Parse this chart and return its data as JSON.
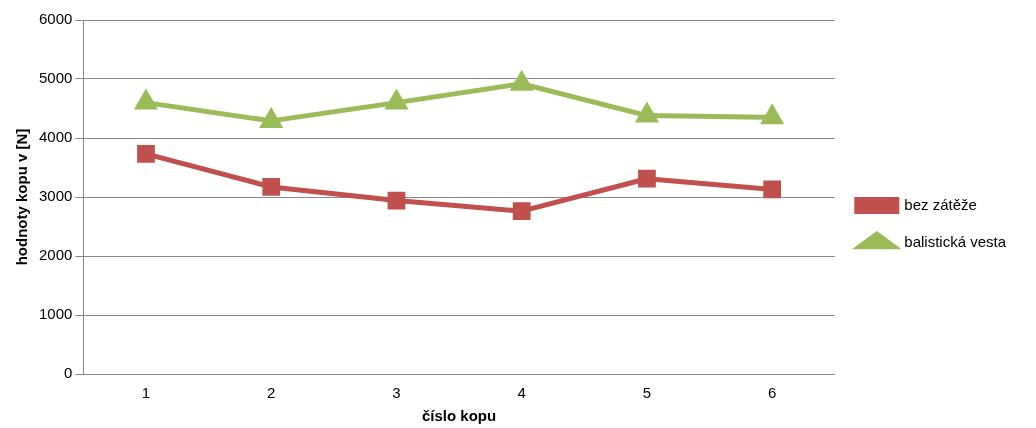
{
  "chart_data": {
    "type": "line",
    "xlabel": "číslo kopu",
    "ylabel": "hodnoty kopu v [N]",
    "categories": [
      "1",
      "2",
      "3",
      "4",
      "5",
      "6"
    ],
    "series": [
      {
        "name": "bez zátěže",
        "color": "#c0504d",
        "marker": "square",
        "values": [
          3730,
          3170,
          2940,
          2760,
          3310,
          3130
        ]
      },
      {
        "name": "balistická vesta",
        "color": "#9bbb59",
        "marker": "triangle",
        "values": [
          4600,
          4290,
          4600,
          4920,
          4380,
          4350
        ]
      }
    ],
    "ylim": [
      0,
      6000
    ],
    "yticks": [
      0,
      1000,
      2000,
      3000,
      4000,
      5000,
      6000
    ],
    "grid": "y",
    "legend": "right"
  }
}
